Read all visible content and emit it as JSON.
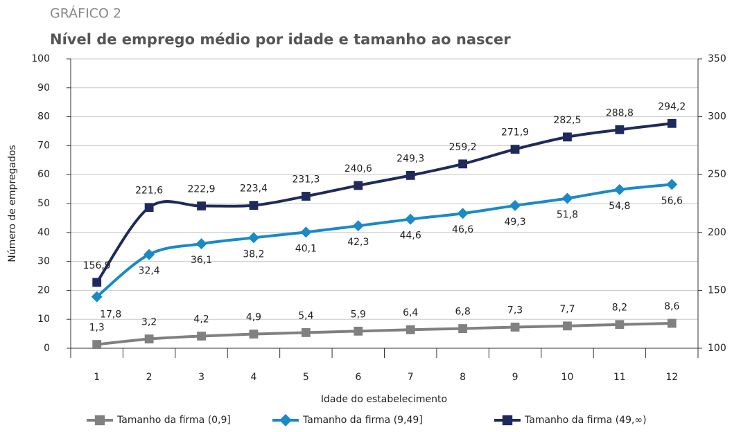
{
  "chart_data": {
    "type": "line",
    "title": "GRÁFICO 2",
    "subtitle": "Nível de emprego médio por idade e tamanho ao nascer",
    "xlabel": "Idade do estabelecimento",
    "ylabel": "Número de empregados",
    "categories": [
      "1",
      "2",
      "3",
      "4",
      "5",
      "6",
      "7",
      "8",
      "9",
      "10",
      "11",
      "12"
    ],
    "ylim": [
      0,
      100
    ],
    "yticks": [
      0,
      10,
      20,
      30,
      40,
      50,
      60,
      70,
      80,
      90,
      100
    ],
    "y2lim": [
      100,
      350
    ],
    "y2ticks": [
      100,
      150,
      200,
      250,
      300,
      350
    ],
    "grid": true,
    "series": [
      {
        "name": "Tamanho da firma (0,9]",
        "color": "#808080",
        "marker": "square",
        "values": [
          1.3,
          3.2,
          4.2,
          4.9,
          5.4,
          5.9,
          6.4,
          6.8,
          7.3,
          7.7,
          8.2,
          8.6
        ],
        "value_labels": [
          "1,3",
          "3,2",
          "4,2",
          "4,9",
          "5,4",
          "5,9",
          "6,4",
          "6,8",
          "7,3",
          "7,7",
          "8,2",
          "8,6"
        ]
      },
      {
        "name": "Tamanho da firma (9,49]",
        "color": "#1a8ac6",
        "marker": "diamond",
        "values": [
          17.8,
          32.4,
          36.1,
          38.2,
          40.1,
          42.3,
          44.6,
          46.6,
          49.3,
          51.8,
          54.8,
          56.6
        ],
        "value_labels": [
          "17,8",
          "32,4",
          "36,1",
          "38,2",
          "40,1",
          "42,3",
          "44,6",
          "46,6",
          "49,3",
          "51,8",
          "54,8",
          "56,6"
        ]
      },
      {
        "name": "Tamanho da firma (49,∞)",
        "color": "#1f2a5c",
        "marker": "square",
        "axis": "y2",
        "values": [
          156.9,
          221.6,
          222.9,
          223.4,
          231.3,
          240.6,
          249.3,
          259.2,
          271.9,
          282.5,
          288.8,
          294.2
        ],
        "value_labels": [
          "156,9",
          "221,6",
          "222,9",
          "223,4",
          "231,3",
          "240,6",
          "249,3",
          "259,2",
          "271,9",
          "282,5",
          "288,8",
          "294,2"
        ]
      }
    ]
  }
}
